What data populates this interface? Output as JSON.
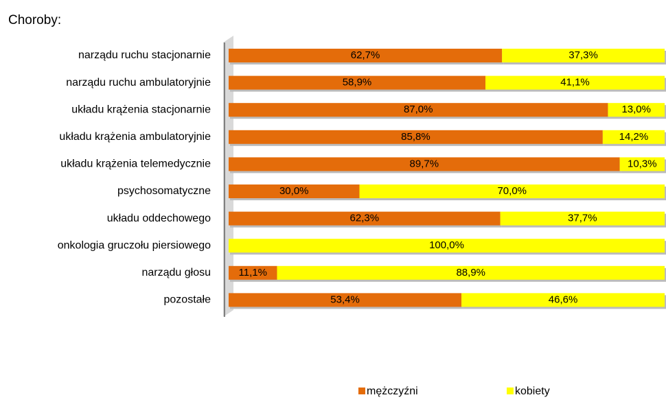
{
  "chart_data": {
    "type": "bar100h",
    "title": "Choroby:",
    "categories": [
      "narządu ruchu stacjonarnie",
      "narządu ruchu ambulatoryjnie",
      "układu krążenia stacjonarnie",
      "układu krążenia ambulatoryjnie",
      "układu krążenia telemedycznie",
      "psychosomatyczne",
      "układu oddechowego",
      "onkologia gruczołu piersiowego",
      "narządu głosu",
      "pozostałe"
    ],
    "series": [
      {
        "name": "mężczyźni",
        "color": "#e46c0a",
        "values": [
          62.7,
          58.9,
          87.0,
          85.8,
          89.7,
          30.0,
          62.3,
          0,
          11.1,
          53.4
        ],
        "value_labels": [
          "62,7%",
          "58,9%",
          "87,0%",
          "85,8%",
          "89,7%",
          "30,0%",
          "62,3%",
          null,
          "11,1%",
          "53,4%"
        ]
      },
      {
        "name": "kobiety",
        "color": "#ffff00",
        "values": [
          37.3,
          41.1,
          13.0,
          14.2,
          10.3,
          70.0,
          37.7,
          100.0,
          88.9,
          46.6
        ],
        "value_labels": [
          "37,3%",
          "41,1%",
          "13,0%",
          "14,2%",
          "10,3%",
          "70,0%",
          "37,7%",
          "100,0%",
          "88,9%",
          "46,6%"
        ]
      }
    ],
    "legend": "bottom"
  }
}
